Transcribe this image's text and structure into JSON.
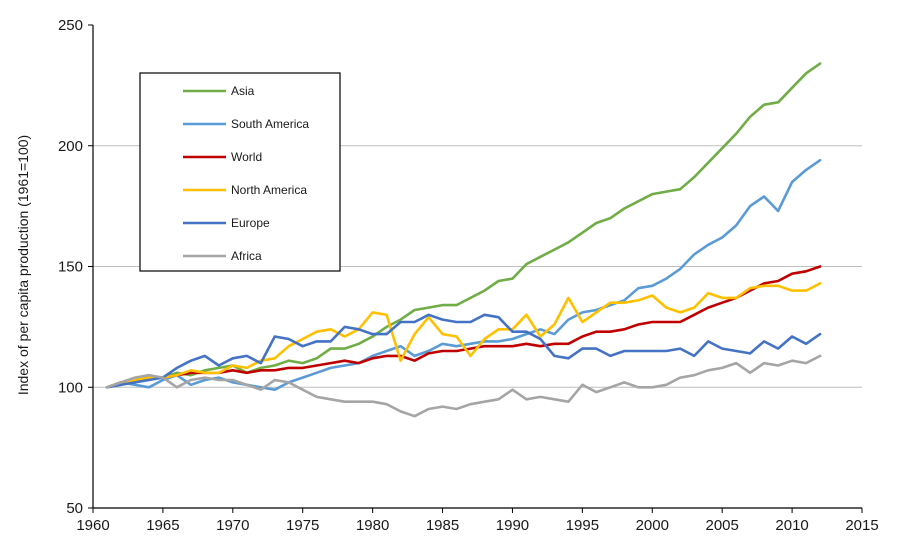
{
  "chart_data": {
    "type": "line",
    "title": "",
    "xlabel": "",
    "ylabel": "Index of per capita production (1961=100)",
    "xlim": [
      1960,
      2015
    ],
    "ylim": [
      50,
      250
    ],
    "xticks": [
      "1960",
      "1965",
      "1970",
      "1975",
      "1980",
      "1985",
      "1990",
      "1995",
      "2000",
      "2005",
      "2010",
      "2015"
    ],
    "yticks": [
      "50",
      "100",
      "150",
      "200",
      "250"
    ],
    "grid": "horizontal",
    "legend_position": "top-left",
    "x": [
      1961,
      1962,
      1963,
      1964,
      1965,
      1966,
      1967,
      1968,
      1969,
      1970,
      1971,
      1972,
      1973,
      1974,
      1975,
      1976,
      1977,
      1978,
      1979,
      1980,
      1981,
      1982,
      1983,
      1984,
      1985,
      1986,
      1987,
      1988,
      1989,
      1990,
      1991,
      1992,
      1993,
      1994,
      1995,
      1996,
      1997,
      1998,
      1999,
      2000,
      2001,
      2002,
      2003,
      2004,
      2005,
      2006,
      2007,
      2008,
      2009,
      2010,
      2011,
      2012
    ],
    "series": [
      {
        "name": "Asia",
        "color": "#70ad47",
        "values": [
          100,
          102,
          103,
          104,
          104,
          106,
          105,
          107,
          108,
          109,
          106,
          108,
          109,
          111,
          110,
          112,
          116,
          116,
          118,
          121,
          125,
          128,
          132,
          133,
          134,
          134,
          137,
          140,
          144,
          145,
          151,
          154,
          157,
          160,
          164,
          168,
          170,
          174,
          177,
          180,
          181,
          182,
          187,
          193,
          199,
          205,
          212,
          217,
          218,
          224,
          230,
          234
        ]
      },
      {
        "name": "South America",
        "color": "#5b9bd5",
        "values": [
          100,
          102,
          101,
          100,
          103,
          105,
          101,
          103,
          104,
          102,
          101,
          100,
          99,
          102,
          104,
          106,
          108,
          109,
          110,
          113,
          115,
          117,
          113,
          115,
          118,
          117,
          118,
          119,
          119,
          120,
          122,
          124,
          122,
          128,
          131,
          132,
          134,
          136,
          141,
          142,
          145,
          149,
          155,
          159,
          162,
          167,
          175,
          179,
          173,
          185,
          190,
          194
        ]
      },
      {
        "name": "World",
        "color": "#c00000",
        "values": [
          100,
          102,
          103,
          104,
          104,
          105,
          106,
          106,
          106,
          107,
          106,
          107,
          107,
          108,
          108,
          109,
          110,
          111,
          110,
          112,
          113,
          113,
          111,
          114,
          115,
          115,
          116,
          117,
          117,
          117,
          118,
          117,
          118,
          118,
          121,
          123,
          123,
          124,
          126,
          127,
          127,
          127,
          130,
          133,
          135,
          137,
          140,
          143,
          144,
          147,
          148,
          150
        ]
      },
      {
        "name": "North America",
        "color": "#ffc000",
        "values": [
          100,
          102,
          103,
          104,
          104,
          105,
          107,
          106,
          106,
          109,
          108,
          111,
          112,
          117,
          120,
          123,
          124,
          121,
          124,
          131,
          130,
          111,
          122,
          129,
          122,
          121,
          113,
          120,
          124,
          124,
          130,
          121,
          126,
          137,
          127,
          131,
          135,
          135,
          136,
          138,
          133,
          131,
          133,
          139,
          137,
          137,
          141,
          142,
          142,
          140,
          140,
          143
        ]
      },
      {
        "name": "Europe",
        "color": "#4472c4",
        "values": [
          100,
          101,
          102,
          103,
          104,
          108,
          111,
          113,
          109,
          112,
          113,
          110,
          121,
          120,
          117,
          119,
          119,
          125,
          124,
          122,
          122,
          127,
          127,
          130,
          128,
          127,
          127,
          130,
          129,
          123,
          123,
          120,
          113,
          112,
          116,
          116,
          113,
          115,
          115,
          115,
          115,
          116,
          113,
          119,
          116,
          115,
          114,
          119,
          116,
          121,
          118,
          122
        ]
      },
      {
        "name": "Africa",
        "color": "#a5a5a5",
        "values": [
          100,
          102,
          104,
          105,
          104,
          100,
          103,
          104,
          103,
          103,
          101,
          99,
          103,
          102,
          99,
          96,
          95,
          94,
          94,
          94,
          93,
          90,
          88,
          91,
          92,
          91,
          93,
          94,
          95,
          99,
          95,
          96,
          95,
          94,
          101,
          98,
          100,
          102,
          100,
          100,
          101,
          104,
          105,
          107,
          108,
          110,
          106,
          110,
          109,
          111,
          110,
          113
        ]
      }
    ]
  }
}
